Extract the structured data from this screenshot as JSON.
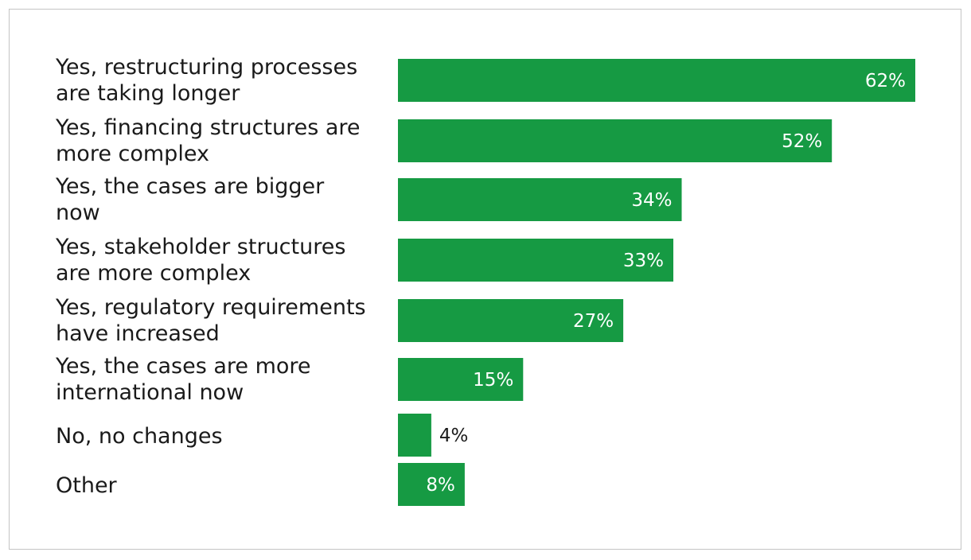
{
  "chart_data": {
    "type": "bar",
    "orientation": "horizontal",
    "categories": [
      [
        "Yes, restructuring processes",
        "are taking longer"
      ],
      [
        "Yes, financing structures are",
        "more complex"
      ],
      [
        "Yes, the cases are bigger",
        "now"
      ],
      [
        "Yes, stakeholder structures",
        "are more complex"
      ],
      [
        "Yes, regulatory requirements",
        "have increased"
      ],
      [
        "Yes, the cases are more",
        "international now"
      ],
      [
        "No, no changes"
      ],
      [
        "Other"
      ]
    ],
    "values": [
      62,
      52,
      34,
      33,
      27,
      15,
      4,
      8
    ],
    "value_labels": [
      "62%",
      "52%",
      "34%",
      "33%",
      "27%",
      "15%",
      "4%",
      "8%"
    ],
    "xlim": [
      0,
      62
    ],
    "grid": false,
    "legend": "none",
    "colors": {
      "bar": "#169a43",
      "label_inside": "#ffffff",
      "label_outside": "#1a1a1a",
      "border": "#c4c4c4"
    }
  }
}
